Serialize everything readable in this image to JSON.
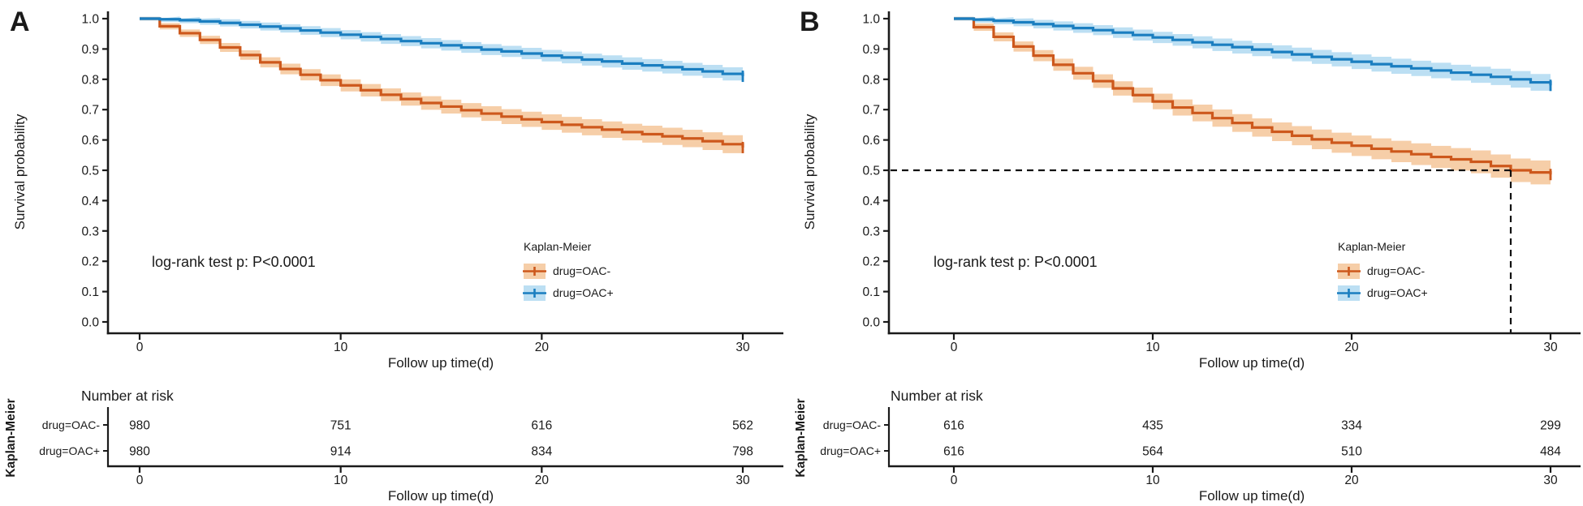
{
  "figure": {
    "background": "#ffffff",
    "axis_color": "#1a1a1a"
  },
  "chart_data": [
    {
      "type": "line",
      "subtype": "kaplan_meier_step",
      "panel_label": "A",
      "xlabel": "Follow up time(d)",
      "ylabel": "Survival probability",
      "annotation": "log-rank test p: P<0.0001",
      "xlim": [
        0,
        30
      ],
      "ylim": [
        0.0,
        1.0
      ],
      "grid": false,
      "x_ticks": [
        0,
        10,
        20,
        30
      ],
      "y_ticks": [
        0.0,
        0.1,
        0.2,
        0.3,
        0.4,
        0.5,
        0.6,
        0.7,
        0.8,
        0.9,
        1.0
      ],
      "y_tick_labels": [
        "0.0",
        "0.1",
        "0.2",
        "0.3",
        "0.4",
        "0.5",
        "0.6",
        "0.7",
        "0.8",
        "0.9",
        "1.0"
      ],
      "legend": {
        "title": "Kaplan-Meier",
        "position": "inside-right"
      },
      "x": [
        0,
        1,
        2,
        3,
        4,
        5,
        6,
        7,
        8,
        9,
        10,
        11,
        12,
        13,
        14,
        15,
        16,
        17,
        18,
        19,
        20,
        21,
        22,
        23,
        24,
        25,
        26,
        27,
        28,
        29,
        30
      ],
      "series": [
        {
          "name": "drug=OAC-",
          "color": "#CD581C",
          "band_color": "#F6CEA8",
          "ci_end_halfwidth": 0.03,
          "y": [
            1.0,
            0.975,
            0.952,
            0.93,
            0.905,
            0.88,
            0.856,
            0.834,
            0.815,
            0.797,
            0.78,
            0.764,
            0.749,
            0.735,
            0.722,
            0.71,
            0.698,
            0.687,
            0.677,
            0.668,
            0.659,
            0.65,
            0.642,
            0.634,
            0.626,
            0.619,
            0.612,
            0.605,
            0.596,
            0.586,
            0.575
          ]
        },
        {
          "name": "drug=OAC+",
          "color": "#1A7EC0",
          "band_color": "#BCDFF3",
          "ci_end_halfwidth": 0.022,
          "y": [
            1.0,
            0.998,
            0.995,
            0.991,
            0.986,
            0.98,
            0.974,
            0.968,
            0.961,
            0.954,
            0.947,
            0.94,
            0.933,
            0.926,
            0.919,
            0.912,
            0.905,
            0.898,
            0.892,
            0.885,
            0.878,
            0.872,
            0.865,
            0.859,
            0.852,
            0.846,
            0.84,
            0.833,
            0.826,
            0.818,
            0.81
          ]
        }
      ],
      "risk_table": {
        "title": "Number at risk",
        "ylabel": "Kaplan-Meier",
        "xlabel": "Follow up time(d)",
        "time_points": [
          0,
          10,
          20,
          30
        ],
        "rows": [
          {
            "name": "drug=OAC-",
            "values": [
              980,
              751,
              616,
              562
            ]
          },
          {
            "name": "drug=OAC+",
            "values": [
              980,
              914,
              834,
              798
            ]
          }
        ]
      }
    },
    {
      "type": "line",
      "subtype": "kaplan_meier_step",
      "panel_label": "B",
      "xlabel": "Follow up time(d)",
      "ylabel": "Survival probability",
      "annotation": "log-rank test p: P<0.0001",
      "xlim": [
        0,
        30
      ],
      "ylim": [
        0.0,
        1.0
      ],
      "grid": false,
      "x_ticks": [
        0,
        10,
        20,
        30
      ],
      "y_ticks": [
        0.0,
        0.1,
        0.2,
        0.3,
        0.4,
        0.5,
        0.6,
        0.7,
        0.8,
        0.9,
        1.0
      ],
      "y_tick_labels": [
        "0.0",
        "0.1",
        "0.2",
        "0.3",
        "0.4",
        "0.5",
        "0.6",
        "0.7",
        "0.8",
        "0.9",
        "1.0"
      ],
      "legend": {
        "title": "Kaplan-Meier",
        "position": "inside-right"
      },
      "median_line": {
        "x": 28,
        "y": 0.5
      },
      "x": [
        0,
        1,
        2,
        3,
        4,
        5,
        6,
        7,
        8,
        9,
        10,
        11,
        12,
        13,
        14,
        15,
        16,
        17,
        18,
        19,
        20,
        21,
        22,
        23,
        24,
        25,
        26,
        27,
        28,
        29,
        30
      ],
      "series": [
        {
          "name": "drug=OAC-",
          "color": "#CD581C",
          "band_color": "#F6CEA8",
          "ci_end_halfwidth": 0.04,
          "y": [
            1.0,
            0.972,
            0.94,
            0.908,
            0.878,
            0.848,
            0.82,
            0.794,
            0.77,
            0.748,
            0.727,
            0.707,
            0.689,
            0.672,
            0.656,
            0.641,
            0.627,
            0.614,
            0.602,
            0.591,
            0.581,
            0.571,
            0.562,
            0.553,
            0.544,
            0.536,
            0.528,
            0.514,
            0.5,
            0.493,
            0.486
          ]
        },
        {
          "name": "drug=OAC+",
          "color": "#1A7EC0",
          "band_color": "#BCDFF3",
          "ci_end_halfwidth": 0.028,
          "y": [
            1.0,
            0.997,
            0.993,
            0.988,
            0.982,
            0.976,
            0.969,
            0.962,
            0.954,
            0.946,
            0.938,
            0.93,
            0.922,
            0.914,
            0.906,
            0.898,
            0.89,
            0.882,
            0.874,
            0.866,
            0.858,
            0.85,
            0.843,
            0.836,
            0.829,
            0.822,
            0.815,
            0.808,
            0.8,
            0.79,
            0.78
          ]
        }
      ],
      "risk_table": {
        "title": "Number at risk",
        "ylabel": "Kaplan-Meier",
        "xlabel": "Follow up time(d)",
        "time_points": [
          0,
          10,
          20,
          30
        ],
        "rows": [
          {
            "name": "drug=OAC-",
            "values": [
              616,
              435,
              334,
              299
            ]
          },
          {
            "name": "drug=OAC+",
            "values": [
              616,
              564,
              510,
              484
            ]
          }
        ]
      }
    }
  ]
}
